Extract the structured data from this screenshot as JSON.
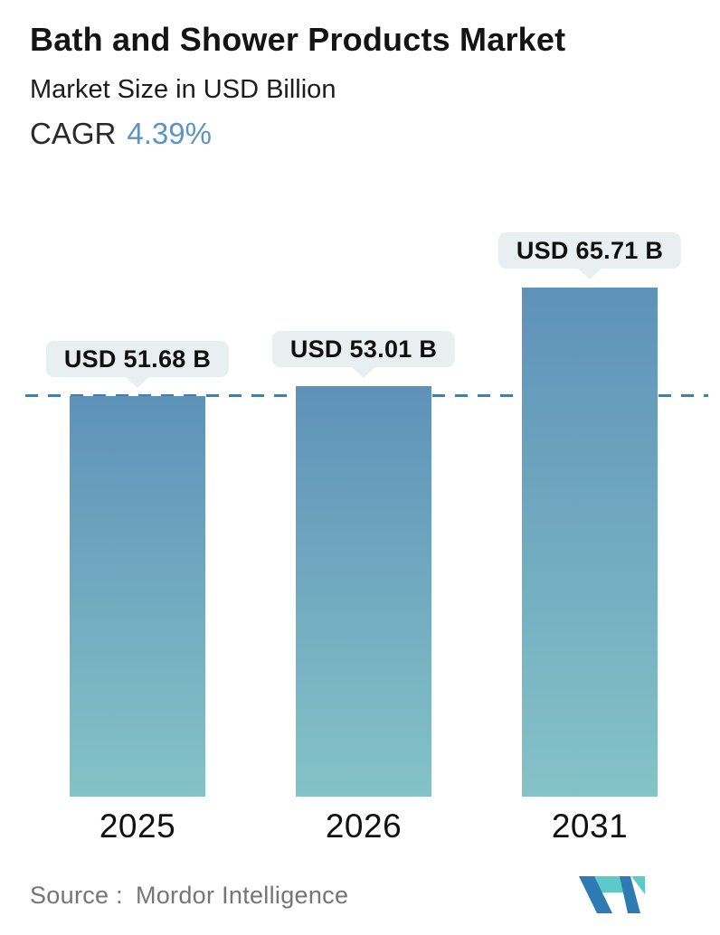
{
  "header": {
    "title": "Bath and Shower Products Market",
    "subtitle": "Market Size in USD Billion",
    "cagr_label": "CAGR",
    "cagr_value": "4.39%"
  },
  "chart_data": {
    "type": "bar",
    "title": "Bath and Shower Products Market",
    "subtitle": "Market Size in USD Billion",
    "unit": "USD Billion",
    "cagr_percent": 4.39,
    "categories": [
      "2025",
      "2026",
      "2031"
    ],
    "values": [
      51.68,
      53.01,
      65.71
    ],
    "value_labels": [
      "USD 51.68 B",
      "USD 53.01 B",
      "USD 65.71 B"
    ],
    "ylim": [
      0,
      75
    ],
    "grid": false,
    "legend": "none",
    "reference_line": {
      "value": 51.68,
      "style": "dashed",
      "color": "#4d7ca3"
    },
    "bar_gradient_top": "#5e92b9",
    "bar_gradient_bottom": "#84c3c7"
  },
  "footer": {
    "source_label": "Source :",
    "source_value": "Mordor Intelligence"
  },
  "colors": {
    "accent_blue": "#5e93c4",
    "tooltip_bg": "#e9eef1",
    "dashed_line": "#4d7ca3",
    "logo_dark_blue": "#2e7bb4",
    "logo_teal": "#5ecac8"
  }
}
